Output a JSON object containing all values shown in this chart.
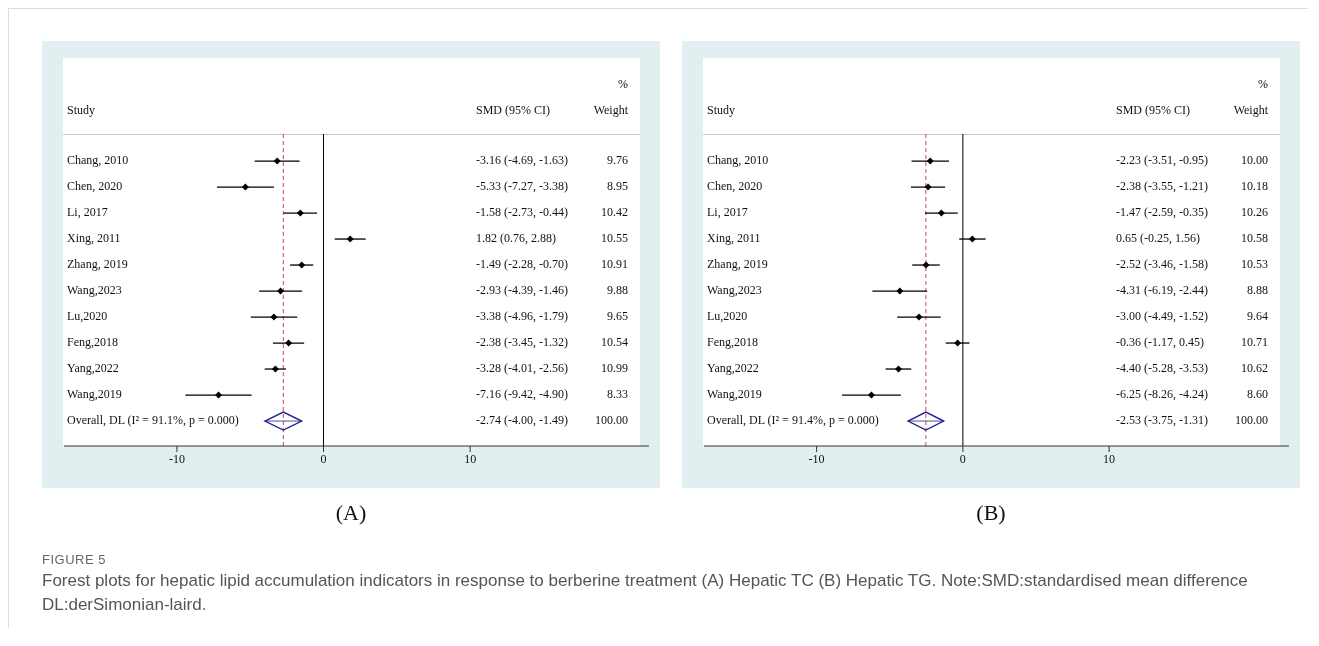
{
  "chart_data": [
    {
      "type": "scatter",
      "orientation": "horizontal",
      "title": "(A)",
      "ylabel": "Study",
      "grid": false,
      "legend": false,
      "categories": [
        "Chang, 2010",
        "Chen, 2020",
        "Li, 2017",
        "Xing, 2011",
        "Zhang, 2019",
        "Wang,2023",
        "Lu,2020",
        "Feng,2018",
        "Yang,2022",
        "Wang,2019",
        "Overall, DL (I² = 91.1%, p = 0.000)"
      ],
      "series": [
        {
          "color": "#000000",
          "marker": "diamond",
          "values": [
            -3.16,
            -5.33,
            -1.58,
            1.82,
            -1.49,
            -2.93,
            -3.38,
            -2.38,
            -3.28,
            -7.16,
            null
          ],
          "errors": [
            [
              -4.69,
              -1.63
            ],
            [
              -7.27,
              -3.38
            ],
            [
              -2.73,
              -0.44
            ],
            [
              0.76,
              2.88
            ],
            [
              -2.28,
              -0.7
            ],
            [
              -4.39,
              -1.46
            ],
            [
              -4.96,
              -1.79
            ],
            [
              -3.45,
              -1.32
            ],
            [
              -4.01,
              -2.56
            ],
            [
              -9.42,
              -4.9
            ],
            null
          ]
        },
        {
          "color": "#1f1f8f",
          "values": [
            null,
            null,
            null,
            null,
            null,
            null,
            null,
            null,
            null,
            null,
            -2.74
          ],
          "errors": [
            null,
            null,
            null,
            null,
            null,
            null,
            null,
            null,
            null,
            null,
            [
              -4.0,
              -1.49
            ]
          ]
        }
      ],
      "xlim": [
        -17.7,
        22.2
      ],
      "xticks": [
        -10,
        0,
        10
      ],
      "ref_lines": [
        {
          "axis": "x",
          "value": 0,
          "color": "#000000",
          "line_style": "solid"
        },
        {
          "axis": "x",
          "value": -2.74,
          "color": "#c0504d",
          "line_style": "dashed"
        }
      ],
      "annotations": [
        "SMD (95% CI)",
        "%",
        "Weight",
        "-3.16 (-4.69, -1.63)",
        "-5.33 (-7.27, -3.38)",
        "-1.58 (-2.73, -0.44)",
        "1.82 (0.76, 2.88)",
        "-1.49 (-2.28, -0.70)",
        "-2.93 (-4.39, -1.46)",
        "-3.38 (-4.96, -1.79)",
        "-2.38 (-3.45, -1.32)",
        "-3.28 (-4.01, -2.56)",
        "-7.16 (-9.42, -4.90)",
        "-2.74 (-4.00, -1.49)",
        "9.76",
        "8.95",
        "10.42",
        "10.55",
        "10.91",
        "9.88",
        "9.65",
        "10.54",
        "10.99",
        "8.33",
        "100.00",
        "FIGURE 5",
        "Forest plots for hepatic lipid accumulation indicators in response to berberine treatment (A) Hepatic TC (B) Hepatic TG. Note:SMD:standardised mean difference DL:derSimonian-laird."
      ]
    },
    {
      "type": "scatter",
      "orientation": "horizontal",
      "title": "(B)",
      "ylabel": "Study",
      "grid": false,
      "legend": false,
      "categories": [
        "Chang, 2010",
        "Chen, 2020",
        "Li, 2017",
        "Xing, 2011",
        "Zhang, 2019",
        "Wang,2023",
        "Lu,2020",
        "Feng,2018",
        "Yang,2022",
        "Wang,2019",
        "Overall, DL (I² = 91.4%, p = 0.000)"
      ],
      "series": [
        {
          "color": "#000000",
          "marker": "diamond",
          "values": [
            -2.23,
            -2.38,
            -1.47,
            0.65,
            -2.52,
            -4.31,
            -3.0,
            -0.36,
            -4.4,
            -6.25,
            null
          ],
          "errors": [
            [
              -3.51,
              -0.95
            ],
            [
              -3.55,
              -1.21
            ],
            [
              -2.59,
              -0.35
            ],
            [
              -0.25,
              1.56
            ],
            [
              -3.46,
              -1.58
            ],
            [
              -6.19,
              -2.44
            ],
            [
              -4.49,
              -1.52
            ],
            [
              -1.17,
              0.45
            ],
            [
              -5.28,
              -3.53
            ],
            [
              -8.26,
              -4.24
            ],
            null
          ]
        },
        {
          "color": "#1f1f8f",
          "values": [
            null,
            null,
            null,
            null,
            null,
            null,
            null,
            null,
            null,
            null,
            -2.53
          ],
          "errors": [
            null,
            null,
            null,
            null,
            null,
            null,
            null,
            null,
            null,
            null,
            [
              -3.75,
              -1.31
            ]
          ]
        }
      ],
      "xlim": [
        -17.7,
        22.3
      ],
      "xticks": [
        -10,
        0,
        10
      ],
      "ref_lines": [
        {
          "axis": "x",
          "value": 0,
          "color": "#000000",
          "line_style": "solid"
        },
        {
          "axis": "x",
          "value": -2.53,
          "color": "#c0504d",
          "line_style": "dashed"
        }
      ],
      "annotations": [
        "SMD (95% CI)",
        "%",
        "Weight",
        "-2.23 (-3.51, -0.95)",
        "-2.38 (-3.55, -1.21)",
        "-1.47 (-2.59, -0.35)",
        "0.65 (-0.25, 1.56)",
        "-2.52 (-3.46, -1.58)",
        "-4.31 (-6.19, -2.44)",
        "-3.00 (-4.49, -1.52)",
        "-0.36 (-1.17, 0.45)",
        "-4.40 (-5.28, -3.53)",
        "-6.25 (-8.26, -4.24)",
        "-2.53 (-3.75, -1.31)",
        "10.00",
        "10.18",
        "10.26",
        "10.58",
        "10.53",
        "8.88",
        "9.64",
        "10.71",
        "10.62",
        "8.60",
        "100.00"
      ]
    }
  ]
}
